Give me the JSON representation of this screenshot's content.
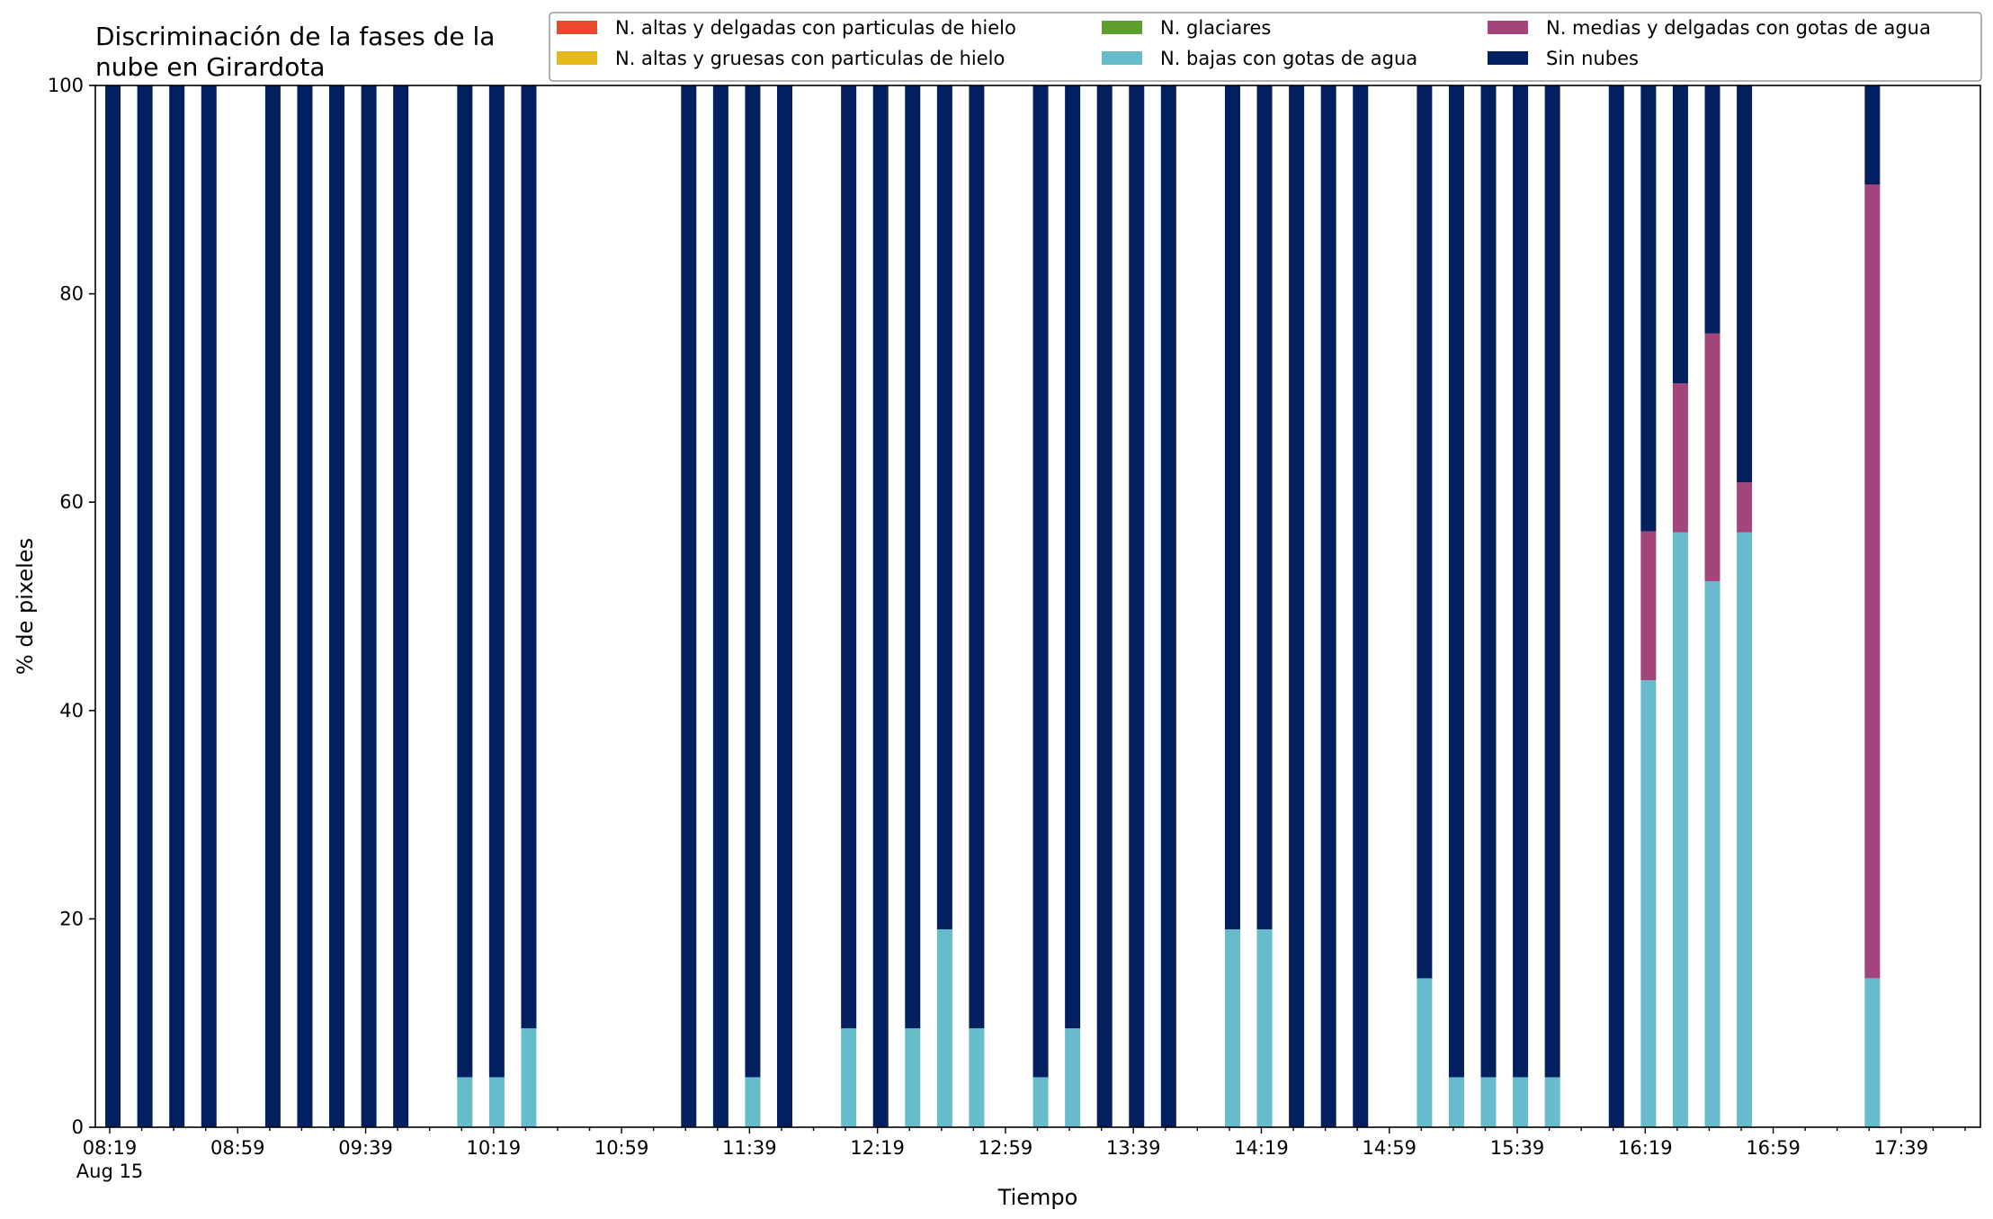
{
  "chart_data": {
    "type": "bar",
    "stacked": true,
    "title_lines": [
      "Discriminación de la fases de la",
      "nube en Girardota"
    ],
    "xlabel": "Tiempo",
    "ylabel": "% de pixeles",
    "ylim": [
      0,
      100
    ],
    "yticks": [
      "0",
      "20",
      "40",
      "60",
      "80",
      "100"
    ],
    "grid": false,
    "legend_position": "top-right",
    "x_start": "08:19",
    "x_end": "17:59",
    "x_date_label": "Aug 15",
    "xtick_labels": [
      "08:19",
      "08:59",
      "09:39",
      "10:19",
      "10:59",
      "11:39",
      "12:19",
      "12:59",
      "13:39",
      "14:19",
      "14:59",
      "15:39",
      "16:19",
      "16:59",
      "17:39"
    ],
    "legend": [
      {
        "name": "N. altas y delgadas con particulas de hielo",
        "color": "#e94a2f"
      },
      {
        "name": "N. altas y gruesas con particulas de hielo",
        "color": "#e5b91a"
      },
      {
        "name": "N. glaciares",
        "color": "#5e9e2d"
      },
      {
        "name": "N. bajas con gotas de agua",
        "color": "#66bccb"
      },
      {
        "name": "N. medias y delgadas con gotas de agua",
        "color": "#a3447b"
      },
      {
        "name": "Sin nubes",
        "color": "#021f5f"
      }
    ],
    "series_colors": {
      "bajas": "#66bccb",
      "medias": "#a3447b",
      "sin_nubes": "#021f5f"
    },
    "bars": [
      {
        "t": "08:20",
        "bajas": 0,
        "medias": 0,
        "sin_nubes": 100
      },
      {
        "t": "08:30",
        "bajas": 0,
        "medias": 0,
        "sin_nubes": 100
      },
      {
        "t": "08:40",
        "bajas": 0,
        "medias": 0,
        "sin_nubes": 100
      },
      {
        "t": "08:50",
        "bajas": 0,
        "medias": 0,
        "sin_nubes": 100
      },
      {
        "t": "09:10",
        "bajas": 0,
        "medias": 0,
        "sin_nubes": 100
      },
      {
        "t": "09:20",
        "bajas": 0,
        "medias": 0,
        "sin_nubes": 100
      },
      {
        "t": "09:30",
        "bajas": 0,
        "medias": 0,
        "sin_nubes": 100
      },
      {
        "t": "09:40",
        "bajas": 0,
        "medias": 0,
        "sin_nubes": 100
      },
      {
        "t": "09:50",
        "bajas": 0,
        "medias": 0,
        "sin_nubes": 100
      },
      {
        "t": "10:10",
        "bajas": 4.8,
        "medias": 0,
        "sin_nubes": 95.2
      },
      {
        "t": "10:20",
        "bajas": 4.8,
        "medias": 0,
        "sin_nubes": 95.2
      },
      {
        "t": "10:30",
        "bajas": 9.5,
        "medias": 0,
        "sin_nubes": 90.5
      },
      {
        "t": "11:20",
        "bajas": 0,
        "medias": 0,
        "sin_nubes": 100
      },
      {
        "t": "11:30",
        "bajas": 0,
        "medias": 0,
        "sin_nubes": 100
      },
      {
        "t": "11:40",
        "bajas": 4.8,
        "medias": 0,
        "sin_nubes": 95.2
      },
      {
        "t": "11:50",
        "bajas": 0,
        "medias": 0,
        "sin_nubes": 100
      },
      {
        "t": "12:10",
        "bajas": 9.5,
        "medias": 0,
        "sin_nubes": 90.5
      },
      {
        "t": "12:20",
        "bajas": 0,
        "medias": 0,
        "sin_nubes": 100
      },
      {
        "t": "12:30",
        "bajas": 9.5,
        "medias": 0,
        "sin_nubes": 90.5
      },
      {
        "t": "12:40",
        "bajas": 19.0,
        "medias": 0,
        "sin_nubes": 81.0
      },
      {
        "t": "12:50",
        "bajas": 9.5,
        "medias": 0,
        "sin_nubes": 90.5
      },
      {
        "t": "13:10",
        "bajas": 4.8,
        "medias": 0,
        "sin_nubes": 95.2
      },
      {
        "t": "13:20",
        "bajas": 9.5,
        "medias": 0,
        "sin_nubes": 90.5
      },
      {
        "t": "13:30",
        "bajas": 0,
        "medias": 0,
        "sin_nubes": 100
      },
      {
        "t": "13:40",
        "bajas": 0,
        "medias": 0,
        "sin_nubes": 100
      },
      {
        "t": "13:50",
        "bajas": 0,
        "medias": 0,
        "sin_nubes": 100
      },
      {
        "t": "14:10",
        "bajas": 19.0,
        "medias": 0,
        "sin_nubes": 81.0
      },
      {
        "t": "14:20",
        "bajas": 19.0,
        "medias": 0,
        "sin_nubes": 81.0
      },
      {
        "t": "14:30",
        "bajas": 0,
        "medias": 0,
        "sin_nubes": 100
      },
      {
        "t": "14:40",
        "bajas": 0,
        "medias": 0,
        "sin_nubes": 100
      },
      {
        "t": "14:50",
        "bajas": 0,
        "medias": 0,
        "sin_nubes": 100
      },
      {
        "t": "15:10",
        "bajas": 14.3,
        "medias": 0,
        "sin_nubes": 85.7
      },
      {
        "t": "15:20",
        "bajas": 4.8,
        "medias": 0,
        "sin_nubes": 95.2
      },
      {
        "t": "15:30",
        "bajas": 4.8,
        "medias": 0,
        "sin_nubes": 95.2
      },
      {
        "t": "15:40",
        "bajas": 4.8,
        "medias": 0,
        "sin_nubes": 95.2
      },
      {
        "t": "15:50",
        "bajas": 4.8,
        "medias": 0,
        "sin_nubes": 95.2
      },
      {
        "t": "16:10",
        "bajas": 0,
        "medias": 0,
        "sin_nubes": 100
      },
      {
        "t": "16:20",
        "bajas": 42.9,
        "medias": 14.3,
        "sin_nubes": 42.8
      },
      {
        "t": "16:30",
        "bajas": 57.1,
        "medias": 14.3,
        "sin_nubes": 28.6
      },
      {
        "t": "16:40",
        "bajas": 52.4,
        "medias": 23.8,
        "sin_nubes": 23.8
      },
      {
        "t": "16:50",
        "bajas": 57.1,
        "medias": 4.8,
        "sin_nubes": 38.1
      },
      {
        "t": "17:30",
        "bajas": 14.3,
        "medias": 76.2,
        "sin_nubes": 9.5
      }
    ]
  }
}
